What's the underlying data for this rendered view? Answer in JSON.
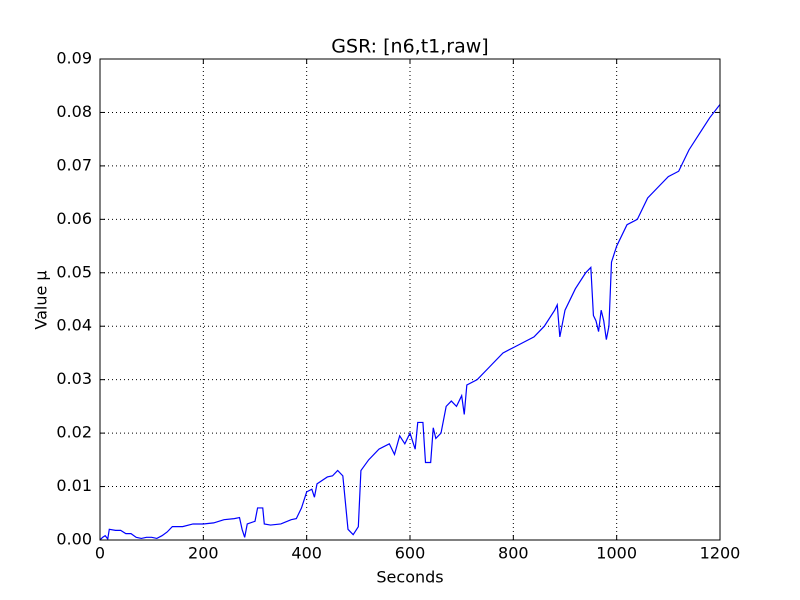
{
  "chart_data": {
    "type": "line",
    "title": "GSR: [n6,t1,raw]",
    "x_label": "Seconds",
    "y_label": "Value µ",
    "x": [
      0,
      5,
      10,
      15,
      18,
      30,
      40,
      50,
      60,
      70,
      80,
      90,
      100,
      110,
      120,
      130,
      140,
      160,
      180,
      200,
      220,
      240,
      260,
      270,
      275,
      280,
      285,
      300,
      305,
      315,
      318,
      330,
      350,
      370,
      380,
      390,
      400,
      410,
      415,
      420,
      440,
      450,
      460,
      470,
      475,
      480,
      490,
      500,
      505,
      520,
      540,
      560,
      570,
      580,
      590,
      600,
      610,
      615,
      625,
      630,
      640,
      645,
      650,
      660,
      670,
      680,
      690,
      700,
      705,
      710,
      730,
      750,
      760,
      780,
      800,
      820,
      840,
      860,
      880,
      885,
      890,
      900,
      920,
      940,
      950,
      955,
      960,
      965,
      970,
      975,
      980,
      985,
      990,
      1000,
      1020,
      1040,
      1060,
      1080,
      1100,
      1120,
      1140,
      1160,
      1180,
      1200
    ],
    "series": [
      {
        "name": "GSR",
        "color": "#0000ff",
        "values": [
          0.0,
          0.0005,
          0.0008,
          0.0002,
          0.002,
          0.0018,
          0.0018,
          0.0012,
          0.0012,
          0.0005,
          0.0003,
          0.0005,
          0.0005,
          0.0003,
          0.0008,
          0.0015,
          0.0025,
          0.0025,
          0.003,
          0.003,
          0.0032,
          0.0038,
          0.004,
          0.0042,
          0.002,
          0.0005,
          0.003,
          0.0035,
          0.006,
          0.006,
          0.003,
          0.0028,
          0.003,
          0.0038,
          0.004,
          0.006,
          0.009,
          0.0095,
          0.008,
          0.0105,
          0.0118,
          0.012,
          0.013,
          0.012,
          0.007,
          0.002,
          0.001,
          0.0025,
          0.013,
          0.015,
          0.017,
          0.018,
          0.016,
          0.0195,
          0.018,
          0.02,
          0.017,
          0.022,
          0.022,
          0.0145,
          0.0145,
          0.021,
          0.019,
          0.02,
          0.025,
          0.026,
          0.025,
          0.027,
          0.0235,
          0.029,
          0.03,
          0.032,
          0.033,
          0.035,
          0.036,
          0.037,
          0.038,
          0.04,
          0.043,
          0.044,
          0.038,
          0.043,
          0.047,
          0.05,
          0.051,
          0.042,
          0.041,
          0.039,
          0.043,
          0.041,
          0.0375,
          0.04,
          0.052,
          0.055,
          0.059,
          0.06,
          0.064,
          0.066,
          0.068,
          0.069,
          0.073,
          0.076,
          0.079,
          0.0815
        ]
      }
    ],
    "xlim": [
      0,
      1200
    ],
    "xticks": [
      0,
      200,
      400,
      600,
      800,
      1000,
      1200
    ],
    "ylim": [
      0,
      0.09
    ],
    "yticks": [
      {
        "value": 0,
        "label": "0.00"
      },
      {
        "value": 0.01,
        "label": "0.01"
      },
      {
        "value": 0.02,
        "label": "0.02"
      },
      {
        "value": 0.03,
        "label": "0.03"
      },
      {
        "value": 0.04,
        "label": "0.04"
      },
      {
        "value": 0.05,
        "label": "0.05"
      },
      {
        "value": 0.06,
        "label": "0.06"
      },
      {
        "value": 0.07,
        "label": "0.07"
      },
      {
        "value": 0.08,
        "label": "0.08"
      },
      {
        "value": 0.09,
        "label": "0.09"
      }
    ],
    "grid": true
  }
}
